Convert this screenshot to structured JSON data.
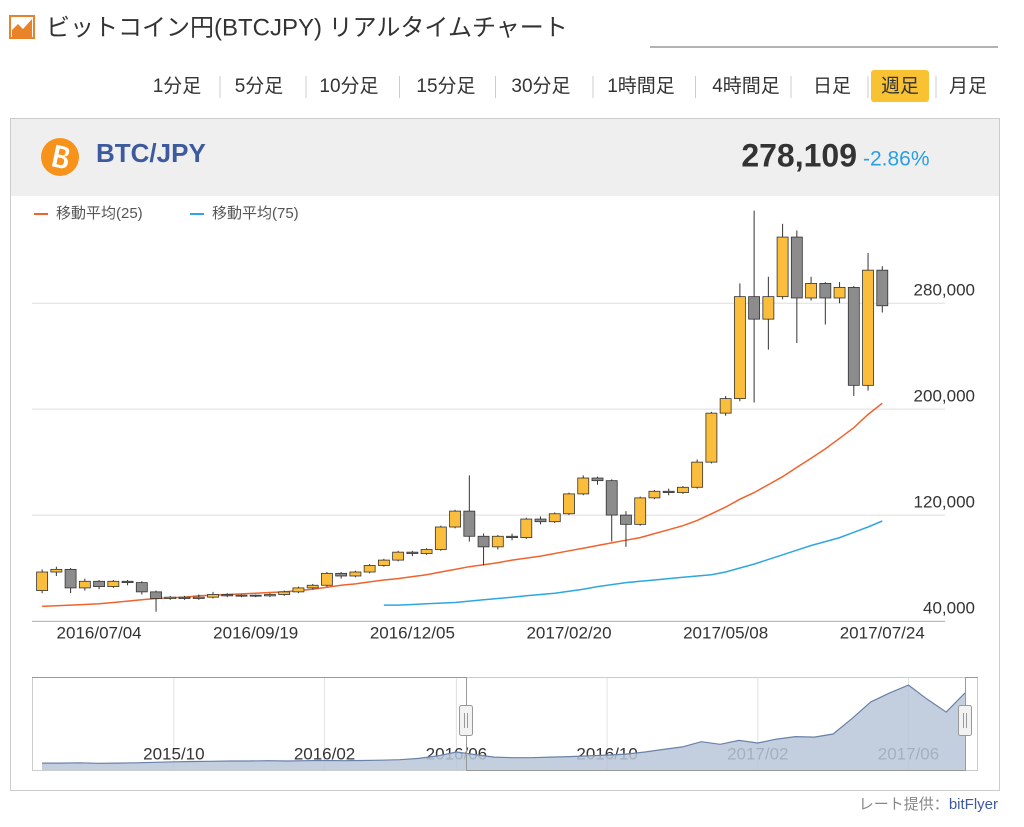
{
  "header": {
    "title": "ビットコイン円(BTCJPY) リアルタイムチャート",
    "tabs": [
      {
        "label": "1分足"
      },
      {
        "label": "5分足"
      },
      {
        "label": "10分足"
      },
      {
        "label": "15分足"
      },
      {
        "label": "30分足"
      },
      {
        "label": "1時間足"
      },
      {
        "label": "4時間足"
      },
      {
        "label": "日足"
      },
      {
        "label": "週足",
        "active": true
      },
      {
        "label": "月足"
      }
    ]
  },
  "ticker": {
    "symbol": "BTC/JPY",
    "price": "278,109",
    "change": "-2.86%"
  },
  "chart_data": {
    "type": "candlestick",
    "categories": [
      null,
      null,
      null,
      null,
      "2016/07/04",
      null,
      null,
      null,
      null,
      null,
      null,
      null,
      null,
      null,
      null,
      "2016/09/19",
      null,
      null,
      null,
      null,
      null,
      null,
      null,
      null,
      null,
      null,
      "2016/12/05",
      null,
      null,
      null,
      null,
      null,
      null,
      null,
      null,
      null,
      null,
      "2017/02/20",
      null,
      null,
      null,
      null,
      null,
      null,
      null,
      null,
      null,
      null,
      "2017/05/08",
      null,
      null,
      null,
      null,
      null,
      null,
      null,
      null,
      null,
      null,
      "2017/07/24"
    ],
    "open": [
      63000,
      77000,
      79000,
      65000,
      70000,
      66000,
      70000,
      69000,
      62000,
      57000,
      58000,
      57000,
      58000,
      60000,
      59000,
      59500,
      59000,
      60000,
      62000,
      65000,
      67000,
      76000,
      74000,
      77000,
      82000,
      86000,
      92000,
      91000,
      94000,
      111000,
      123000,
      104000,
      96000,
      104000,
      103000,
      117000,
      115000,
      121000,
      136000,
      148000,
      146000,
      120000,
      113000,
      133000,
      138000,
      137000,
      141000,
      160000,
      197000,
      208000,
      285000,
      268000,
      285000,
      330000,
      284000,
      295000,
      284000,
      292000,
      218000,
      305000
    ],
    "high": [
      79000,
      81000,
      80000,
      72000,
      71000,
      71000,
      71000,
      70000,
      63000,
      59000,
      59000,
      60000,
      62000,
      61000,
      60000,
      60000,
      61000,
      63000,
      66000,
      68000,
      77000,
      77000,
      78000,
      83000,
      87000,
      93000,
      93000,
      95000,
      112000,
      124000,
      150000,
      106000,
      105000,
      106000,
      118000,
      119000,
      122000,
      137000,
      150000,
      149000,
      147000,
      123000,
      134000,
      139000,
      140000,
      142000,
      162000,
      198000,
      210000,
      295000,
      350000,
      300000,
      340000,
      335000,
      300000,
      296000,
      296000,
      293000,
      318000,
      308000
    ],
    "low": [
      61000,
      74000,
      61000,
      63000,
      64000,
      65000,
      67000,
      60000,
      47000,
      56000,
      56000,
      56000,
      57000,
      58000,
      58000,
      58000,
      58000,
      59000,
      61000,
      64000,
      66000,
      72000,
      73000,
      76000,
      81000,
      85000,
      89000,
      90000,
      93000,
      110000,
      100000,
      82000,
      94000,
      101000,
      102000,
      113000,
      114000,
      120000,
      135000,
      143000,
      100000,
      96000,
      112000,
      132000,
      135000,
      136000,
      140000,
      159000,
      195000,
      206000,
      205000,
      245000,
      283000,
      250000,
      282000,
      264000,
      280000,
      210000,
      214000,
      273000
    ],
    "close": [
      77000,
      79000,
      65000,
      70000,
      66000,
      70000,
      69000,
      62000,
      57000,
      58000,
      57000,
      58000,
      60000,
      59000,
      59500,
      59000,
      60000,
      62000,
      65000,
      67000,
      76000,
      74000,
      77000,
      82000,
      86000,
      92000,
      91000,
      94000,
      111000,
      123000,
      104000,
      96000,
      104000,
      103000,
      117000,
      115000,
      121000,
      136000,
      148000,
      146000,
      120000,
      113000,
      133000,
      138000,
      137000,
      141000,
      160000,
      197000,
      208000,
      285000,
      268000,
      285000,
      330000,
      284000,
      295000,
      284000,
      292000,
      218000,
      305000,
      278109
    ],
    "up_color": "#fbbd3c",
    "down_color": "#8c8c8c",
    "series": [
      {
        "name": "移動平均(25)",
        "color": "#f0632d",
        "values": [
          51000,
          51500,
          52000,
          52500,
          53000,
          54000,
          55000,
          56000,
          57000,
          57500,
          58000,
          59000,
          59500,
          60000,
          60500,
          61000,
          61500,
          62000,
          63000,
          64000,
          65500,
          67000,
          68000,
          69500,
          71000,
          72000,
          73500,
          75000,
          77000,
          79000,
          81000,
          82500,
          84000,
          86000,
          87500,
          89000,
          91000,
          93000,
          95000,
          97000,
          99000,
          101000,
          103000,
          106000,
          109000,
          112000,
          116000,
          121000,
          126000,
          132000,
          137000,
          143000,
          149000,
          156000,
          163000,
          170000,
          178000,
          186000,
          196000,
          204500
        ]
      },
      {
        "name": "移動平均(75)",
        "color": "#2fa6e4",
        "values": [
          null,
          null,
          null,
          null,
          null,
          null,
          null,
          null,
          null,
          null,
          null,
          null,
          null,
          null,
          null,
          null,
          null,
          null,
          null,
          null,
          null,
          null,
          null,
          null,
          52000,
          52000,
          52500,
          53000,
          53500,
          54000,
          55000,
          56000,
          57000,
          58000,
          59000,
          60000,
          61000,
          62500,
          64000,
          66000,
          67500,
          69000,
          70000,
          71000,
          72000,
          73000,
          74000,
          75000,
          77000,
          80000,
          83000,
          86500,
          90000,
          93500,
          97000,
          100000,
          103000,
          107000,
          111000,
          115500
        ]
      }
    ],
    "ylim": [
      40000,
      358000
    ],
    "yticks": [
      {
        "value": 40000,
        "label": "40,000"
      },
      {
        "value": 120000,
        "label": "120,000"
      },
      {
        "value": 200000,
        "label": "200,000"
      },
      {
        "value": 280000,
        "label": "280,000"
      }
    ],
    "grid": true
  },
  "navigator": {
    "type": "area",
    "categories": [
      null,
      null,
      null,
      null,
      null,
      null,
      null,
      "2015/10",
      null,
      null,
      null,
      null,
      null,
      null,
      null,
      "2016/02",
      null,
      null,
      null,
      null,
      null,
      null,
      "2016/06",
      null,
      null,
      null,
      null,
      null,
      null,
      null,
      "2016/10",
      null,
      null,
      null,
      null,
      null,
      null,
      null,
      "2017/02",
      null,
      null,
      null,
      null,
      null,
      null,
      null,
      "2017/06",
      null,
      null,
      null
    ],
    "values": [
      27000,
      27000,
      28000,
      26000,
      27000,
      28000,
      30000,
      32000,
      33000,
      34000,
      35000,
      35000,
      36000,
      35000,
      36000,
      37000,
      36000,
      37000,
      38000,
      40000,
      45000,
      55000,
      70000,
      60000,
      50000,
      48000,
      48000,
      50000,
      52000,
      55000,
      58000,
      62000,
      70000,
      80000,
      90000,
      110000,
      100000,
      115000,
      105000,
      120000,
      130000,
      128000,
      140000,
      200000,
      265000,
      300000,
      330000,
      275000,
      225000,
      300000
    ],
    "ylim": [
      0,
      350000
    ],
    "color": "#b9c5d8",
    "line_color": "#6a82a8"
  },
  "footer": {
    "credit_label": "レート提供：",
    "credit_source": "bitFlyer"
  }
}
